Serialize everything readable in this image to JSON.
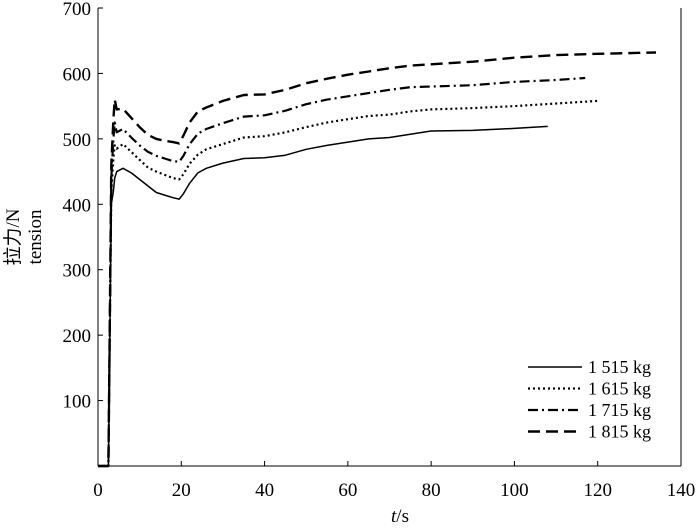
{
  "chart_data": {
    "type": "line",
    "xlabel": "t/s",
    "xlabel_italic": "t",
    "xlabel_unit": "/s",
    "ylabel_cn": "拉力/N",
    "ylabel_en": "tension",
    "xlim": [
      0,
      140
    ],
    "ylim": [
      0,
      700
    ],
    "xticks": [
      0,
      20,
      40,
      60,
      80,
      100,
      120,
      140
    ],
    "yticks": [
      100,
      200,
      300,
      400,
      500,
      600,
      700
    ],
    "grid": false,
    "legend_position": "bottom-right",
    "series": [
      {
        "name": "1 515 kg",
        "dash": "solid",
        "x": [
          0,
          2.5,
          3.2,
          3.7,
          4.0,
          4.5,
          6,
          8,
          10,
          12,
          14,
          16,
          18,
          19.5,
          20.5,
          22,
          24,
          26,
          30,
          35,
          40,
          45,
          50,
          55,
          60,
          65,
          70,
          75,
          80,
          90,
          100,
          108
        ],
        "y": [
          0,
          0,
          400,
          420,
          440,
          450,
          455,
          448,
          438,
          428,
          418,
          414,
          410,
          408,
          416,
          432,
          448,
          455,
          463,
          470,
          471,
          475,
          484,
          490,
          495,
          500,
          502,
          507,
          512,
          513,
          516,
          519
        ]
      },
      {
        "name": "1 615 kg",
        "dash": "dotted",
        "x": [
          0,
          2.5,
          3.2,
          3.7,
          4.0,
          4.5,
          6,
          8,
          10,
          12,
          14,
          16,
          18,
          19.5,
          20.5,
          22,
          24,
          26,
          30,
          35,
          40,
          45,
          50,
          55,
          60,
          65,
          70,
          75,
          80,
          90,
          100,
          110,
          120
        ],
        "y": [
          0,
          0,
          420,
          470,
          490,
          485,
          492,
          480,
          468,
          456,
          450,
          445,
          440,
          438,
          446,
          462,
          476,
          484,
          492,
          502,
          504,
          510,
          518,
          525,
          530,
          535,
          537,
          542,
          545,
          547,
          550,
          554,
          558
        ]
      },
      {
        "name": "1 715 kg",
        "dash": "dashdot",
        "x": [
          0,
          2.5,
          3.2,
          3.7,
          4.0,
          4.5,
          6,
          8,
          10,
          12,
          14,
          16,
          18,
          19.5,
          20.5,
          22,
          24,
          26,
          30,
          35,
          40,
          45,
          50,
          55,
          60,
          65,
          70,
          75,
          80,
          90,
          100,
          110,
          117
        ],
        "y": [
          0,
          0,
          440,
          500,
          525,
          510,
          515,
          502,
          490,
          480,
          474,
          470,
          466,
          465,
          474,
          492,
          508,
          515,
          524,
          534,
          536,
          543,
          553,
          560,
          565,
          570,
          575,
          579,
          580,
          582,
          587,
          590,
          593
        ]
      },
      {
        "name": "1 815 kg",
        "dash": "dashed",
        "x": [
          0,
          2.5,
          3.2,
          3.7,
          4.0,
          4.5,
          6,
          8,
          10,
          12,
          14,
          16,
          18,
          19.5,
          20.5,
          22,
          24,
          26,
          30,
          35,
          40,
          45,
          50,
          55,
          60,
          65,
          70,
          75,
          80,
          90,
          100,
          110,
          120,
          134
        ],
        "y": [
          0,
          0,
          460,
          530,
          560,
          545,
          546,
          532,
          518,
          506,
          500,
          497,
          495,
          493,
          505,
          525,
          542,
          548,
          558,
          567,
          568,
          575,
          585,
          592,
          598,
          603,
          608,
          612,
          614,
          618,
          624,
          628,
          630,
          632
        ]
      }
    ]
  }
}
